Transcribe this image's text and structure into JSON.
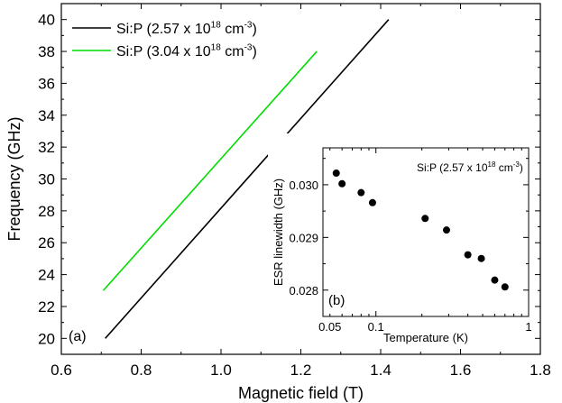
{
  "chart_data": [
    {
      "type": "line",
      "panel_label": "(a)",
      "xlabel": "Magnetic field (T)",
      "ylabel": "Frequency (GHz)",
      "xlim": [
        0.6,
        1.8
      ],
      "ylim": [
        19,
        41
      ],
      "xticks": [
        0.6,
        0.8,
        1.0,
        1.2,
        1.4,
        1.6,
        1.8
      ],
      "xtick_labels": [
        "0.6",
        "0.8",
        "1.0",
        "1.2",
        "1.4",
        "1.6",
        "1.8"
      ],
      "yticks": [
        20,
        22,
        24,
        26,
        28,
        30,
        32,
        34,
        36,
        38,
        40
      ],
      "yticks_labels": [
        "20",
        "22",
        "24",
        "26",
        "28",
        "30",
        "32",
        "34",
        "36",
        "38",
        "40"
      ],
      "grid": false,
      "legend_position": "top-left",
      "series": [
        {
          "name": "Si:P (2.57 x 10",
          "name_sup": "18",
          "name_mid": " cm",
          "name_sup2": "-3",
          "name_end": ")",
          "color": "#000000",
          "x": [
            0.71,
            1.42
          ],
          "y": [
            20,
            40
          ]
        },
        {
          "name": "Si:P (3.04 x 10",
          "name_sup": "18",
          "name_mid": " cm",
          "name_sup2": "-3",
          "name_end": ")",
          "color": "#00dd00",
          "x": [
            0.705,
            1.24
          ],
          "y": [
            23,
            38
          ]
        }
      ]
    },
    {
      "type": "scatter",
      "panel_label": "(b)",
      "xlabel": "Temperature (K)",
      "ylabel": "ESR linewidth (GHz)",
      "xscale": "log",
      "xlim": [
        0.045,
        1.0
      ],
      "ylim": [
        0.0275,
        0.0307
      ],
      "xtick_labels": [
        "0.05",
        "0.1",
        "1"
      ],
      "xticks": [
        0.05,
        0.1,
        1.0
      ],
      "yticks": [
        0.028,
        0.029,
        0.03
      ],
      "ytick_labels": [
        "0.028",
        "0.029",
        "0.030"
      ],
      "annotation": {
        "text": "Si:P (2.57 x 10",
        "sup": "18",
        "mid": " cm",
        "sup2": "-3",
        "end": ")"
      },
      "points": {
        "x": [
          0.055,
          0.06,
          0.08,
          0.095,
          0.21,
          0.29,
          0.4,
          0.49,
          0.6,
          0.7
        ],
        "y": [
          0.03022,
          0.03002,
          0.02985,
          0.02966,
          0.02936,
          0.02914,
          0.02867,
          0.0286,
          0.02819,
          0.02806
        ]
      }
    }
  ]
}
